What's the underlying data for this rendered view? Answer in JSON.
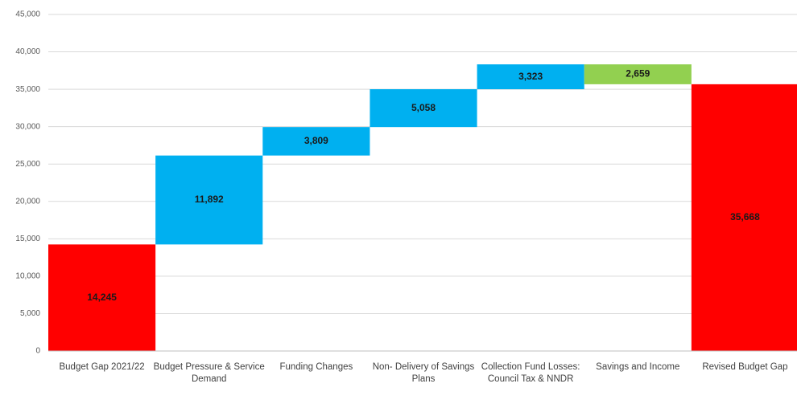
{
  "chart_data": {
    "type": "waterfall",
    "categories": [
      "Budget Gap 2021/22",
      "Budget Pressure & Service Demand",
      "Funding Changes",
      "Non- Delivery of Savings Plans",
      "Collection Fund Losses: Council Tax & NNDR",
      "Savings and Income",
      "Revised Budget Gap"
    ],
    "values": [
      14245,
      11892,
      3809,
      5058,
      3323,
      -2659,
      35668
    ],
    "value_labels": [
      "14,245",
      "11,892",
      "3,809",
      "5,058",
      "3,323",
      "2,659",
      "35,668"
    ],
    "measure": [
      "total",
      "relative",
      "relative",
      "relative",
      "relative",
      "relative",
      "total"
    ],
    "colors": [
      "#ff0000",
      "#00b0f0",
      "#00b0f0",
      "#00b0f0",
      "#00b0f0",
      "#92d050",
      "#ff0000"
    ],
    "ylim": [
      0,
      45000
    ],
    "yticks": [
      0,
      {
        "value": 5000,
        "label": "5,000"
      },
      {
        "value": 10000,
        "label": "10,000"
      },
      {
        "value": 15000,
        "label": "15,000"
      },
      {
        "value": 20000,
        "label": "20,000"
      },
      {
        "value": 25000,
        "label": "25,000"
      },
      {
        "value": 30000,
        "label": "30,000"
      },
      {
        "value": 35000,
        "label": "35,000"
      },
      {
        "value": 40000,
        "label": "40,000"
      },
      {
        "value": 45000,
        "label": "45,000"
      }
    ],
    "grid": true
  }
}
